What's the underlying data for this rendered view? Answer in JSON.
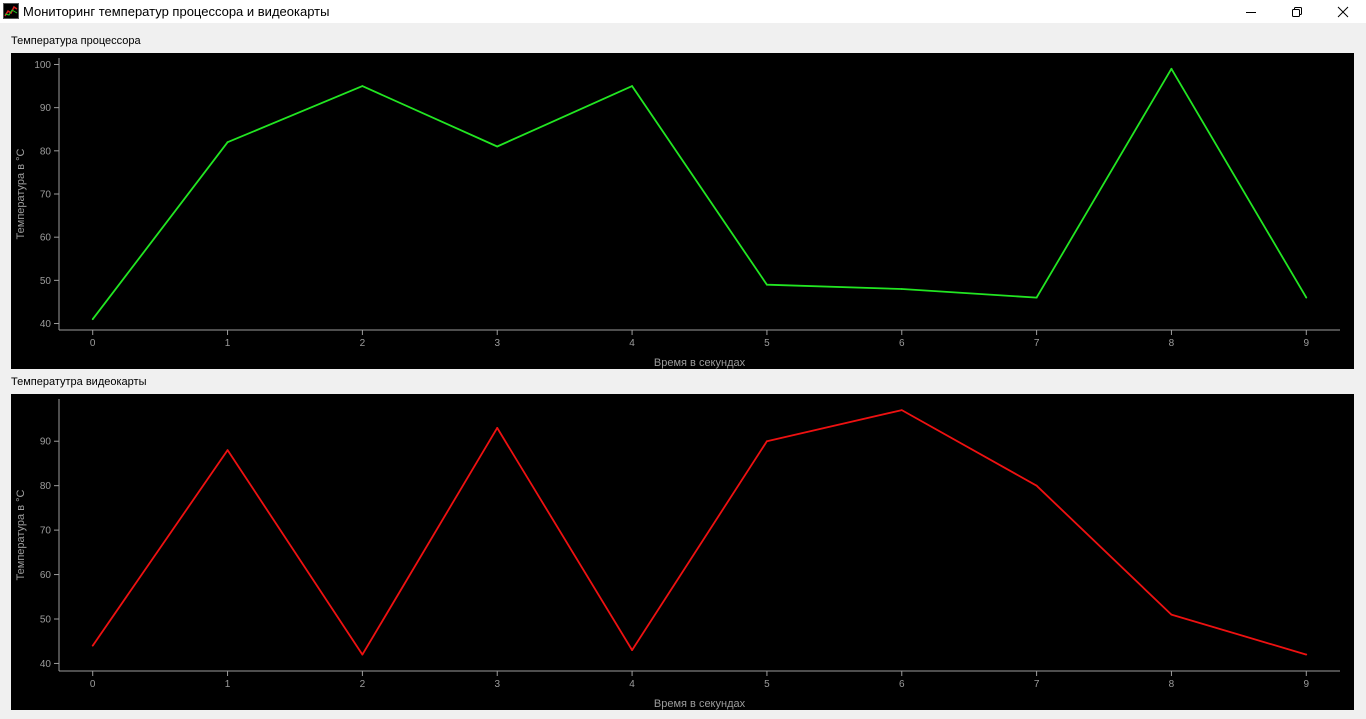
{
  "window": {
    "title": "Мониторинг температур процессора и видеокарты",
    "icon": "chart-app-icon",
    "controls": [
      "minimize-icon",
      "restore-icon",
      "close-icon"
    ]
  },
  "charts": {
    "cpu": {
      "section_label": "Температура процессора"
    },
    "gpu": {
      "section_label": "Температутра видеокарты"
    }
  },
  "chart_data": [
    {
      "type": "line",
      "title": "Температура процессора",
      "xlabel": "Время в секундах",
      "ylabel": "Температура в °C",
      "x": [
        0,
        1,
        2,
        3,
        4,
        5,
        6,
        7,
        8,
        9
      ],
      "series": [
        {
          "color": "#22e622",
          "values": [
            41,
            82,
            95,
            81,
            95,
            49,
            48,
            46,
            99,
            46
          ]
        }
      ],
      "xlim": [
        -0.25,
        9.25
      ],
      "ylim": [
        38.5,
        101.5
      ],
      "xticks": [
        0,
        1,
        2,
        3,
        4,
        5,
        6,
        7,
        8,
        9
      ],
      "yticks": [
        40,
        50,
        60,
        70,
        80,
        90,
        100
      ],
      "grid": false,
      "background": "#000000",
      "axis_color": "#9c9c9c"
    },
    {
      "type": "line",
      "title": "Температутра видеокарты",
      "xlabel": "Время в секундах",
      "ylabel": "Температура в °C",
      "x": [
        0,
        1,
        2,
        3,
        4,
        5,
        6,
        7,
        8,
        9
      ],
      "series": [
        {
          "color": "#ee1111",
          "values": [
            44,
            88,
            42,
            93,
            43,
            90,
            97,
            80,
            51,
            42
          ]
        }
      ],
      "xlim": [
        -0.25,
        9.25
      ],
      "ylim": [
        38.3,
        99.5
      ],
      "xticks": [
        0,
        1,
        2,
        3,
        4,
        5,
        6,
        7,
        8,
        9
      ],
      "yticks": [
        40,
        50,
        60,
        70,
        80,
        90
      ],
      "grid": false,
      "background": "#000000",
      "axis_color": "#9c9c9c"
    }
  ]
}
